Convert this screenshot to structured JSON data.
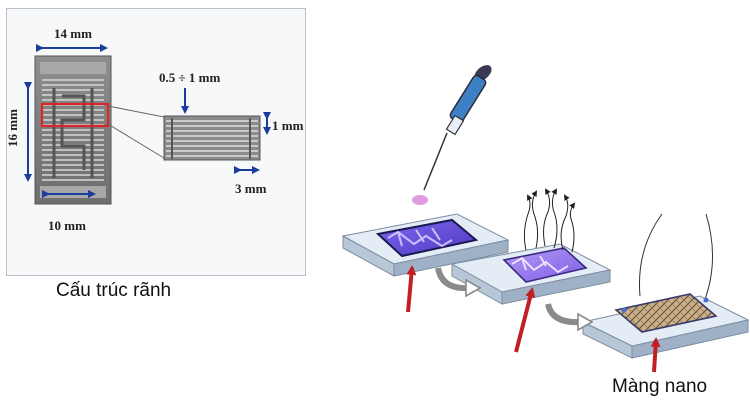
{
  "left_panel": {
    "dim_width_top": "14 mm",
    "dim_height_left": "16 mm",
    "dim_bottom": "10 mm",
    "dim_gap": "0.5 ÷ 1 mm",
    "dim_right": "1 mm",
    "dim_small_bottom": "3 mm",
    "caption": "Cấu trúc rãnh"
  },
  "right_panel": {
    "caption": "Màng nano"
  },
  "colors": {
    "dimension_arrow": "#1a3c9c",
    "highlight_box": "#d9262a",
    "indicator_arrow": "#c41e25",
    "electrode_purple": "#6a52d8",
    "substrate_blue": "#c9d8e8"
  }
}
